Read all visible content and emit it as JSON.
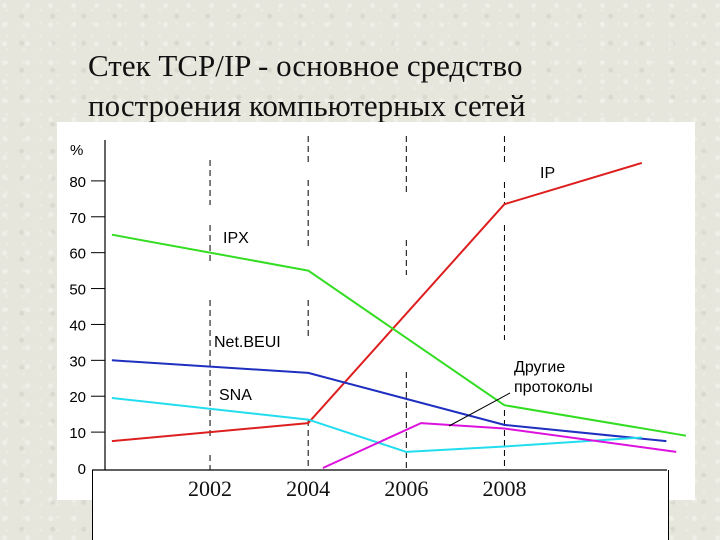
{
  "slide": {
    "title_line1": "Стек TCP/IP - основное средство",
    "title_line2": "построения компьютерных сетей"
  },
  "chart_data": {
    "type": "line",
    "ylabel": "%",
    "ylim": [
      0,
      90
    ],
    "xlim": [
      1999.9,
      2011.7
    ],
    "yticks": [
      0,
      10,
      20,
      30,
      40,
      50,
      60,
      70,
      80
    ],
    "year_ticks": [
      "2002",
      "2004",
      "2006",
      "2008"
    ],
    "series": [
      {
        "name": "IP",
        "color": "#dd1f1f",
        "points": [
          [
            2000,
            7.5
          ],
          [
            2004,
            12.5
          ],
          [
            2008,
            73.5
          ],
          [
            2010.8,
            85
          ]
        ]
      },
      {
        "name": "IPX",
        "color": "#33dd22",
        "points": [
          [
            2000,
            65
          ],
          [
            2004,
            55
          ],
          [
            2008,
            17.5
          ],
          [
            2011.7,
            9
          ]
        ]
      },
      {
        "name": "Net.BEUI",
        "color": "#1f2fbf",
        "points": [
          [
            2000,
            30
          ],
          [
            2004,
            26.5
          ],
          [
            2008,
            12
          ],
          [
            2011.3,
            7.5
          ]
        ]
      },
      {
        "name": "SNA",
        "color": "#22ddee",
        "points": [
          [
            2000,
            19.5
          ],
          [
            2004,
            13.5
          ],
          [
            2006,
            4.5
          ],
          [
            2008,
            6
          ],
          [
            2010.8,
            8.5
          ]
        ]
      },
      {
        "name": "Другие протоколы",
        "color": "#dd11dd",
        "points": [
          [
            2004.3,
            0
          ],
          [
            2006.3,
            12.5
          ],
          [
            2008,
            11
          ],
          [
            2011.5,
            4.5
          ]
        ]
      }
    ],
    "series_labels": [
      "IP",
      "IPX",
      "Net.BEUI",
      "SNA",
      "Другие",
      "протоколы"
    ]
  }
}
